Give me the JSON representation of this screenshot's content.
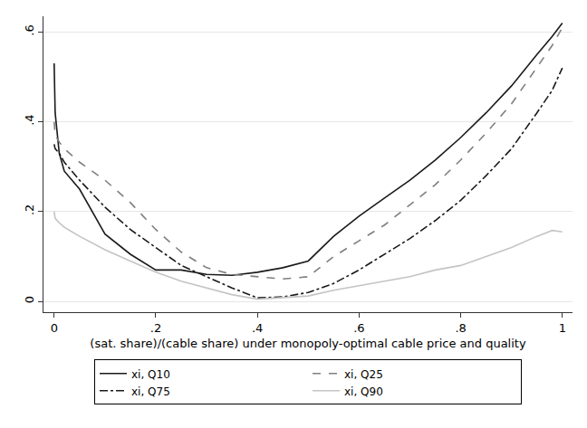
{
  "chart_data": {
    "type": "line",
    "x_label": "(sat. share)/(cable share) under monopoly-optimal cable price and quality",
    "x": [
      0,
      0.002,
      0.01,
      0.02,
      0.05,
      0.1,
      0.15,
      0.2,
      0.25,
      0.3,
      0.35,
      0.4,
      0.45,
      0.5,
      0.55,
      0.6,
      0.65,
      0.7,
      0.75,
      0.8,
      0.85,
      0.9,
      0.95,
      0.98,
      1
    ],
    "series": [
      {
        "name": "xi, Q10",
        "color": "#1a1a1a",
        "line_style": "solid",
        "values": [
          0.53,
          0.42,
          0.33,
          0.29,
          0.25,
          0.15,
          0.105,
          0.07,
          0.07,
          0.06,
          0.058,
          0.065,
          0.075,
          0.09,
          0.145,
          0.19,
          0.23,
          0.27,
          0.315,
          0.365,
          0.42,
          0.48,
          0.55,
          0.59,
          0.62
        ]
      },
      {
        "name": "xi, Q25",
        "color": "#7f7f7f",
        "line_style": "dash",
        "values": [
          0.4,
          0.37,
          0.355,
          0.34,
          0.31,
          0.27,
          0.22,
          0.16,
          0.11,
          0.075,
          0.06,
          0.055,
          0.05,
          0.055,
          0.1,
          0.135,
          0.17,
          0.215,
          0.26,
          0.315,
          0.375,
          0.44,
          0.52,
          0.57,
          0.61
        ]
      },
      {
        "name": "xi, Q75",
        "color": "#1a1a1a",
        "line_style": "dashdot",
        "values": [
          0.35,
          0.34,
          0.33,
          0.31,
          0.27,
          0.21,
          0.16,
          0.12,
          0.08,
          0.055,
          0.03,
          0.008,
          0.01,
          0.02,
          0.04,
          0.07,
          0.105,
          0.14,
          0.18,
          0.225,
          0.28,
          0.34,
          0.42,
          0.47,
          0.52
        ]
      },
      {
        "name": "xi, Q90",
        "color": "#c4c4c4",
        "line_style": "solid",
        "values": [
          0.2,
          0.185,
          0.175,
          0.165,
          0.145,
          0.115,
          0.09,
          0.065,
          0.045,
          0.03,
          0.015,
          0.005,
          0.008,
          0.012,
          0.025,
          0.035,
          0.045,
          0.055,
          0.07,
          0.08,
          0.1,
          0.12,
          0.145,
          0.158,
          0.155
        ]
      }
    ],
    "xlim": [
      -0.021,
      1.02
    ],
    "xticks": [
      0,
      {
        "value": 0.2,
        "label": ".2"
      },
      {
        "value": 0.4,
        "label": ".4"
      },
      {
        "value": 0.6,
        "label": ".6"
      },
      {
        "value": 0.8,
        "label": ".8"
      },
      1
    ],
    "ylim": [
      -0.024,
      0.635
    ],
    "yticks": [
      0,
      {
        "value": 0.2,
        "label": ".2"
      },
      {
        "value": 0.4,
        "label": ".4"
      },
      {
        "value": 0.6,
        "label": ".6"
      }
    ],
    "grid": true,
    "legend": "bottom"
  }
}
